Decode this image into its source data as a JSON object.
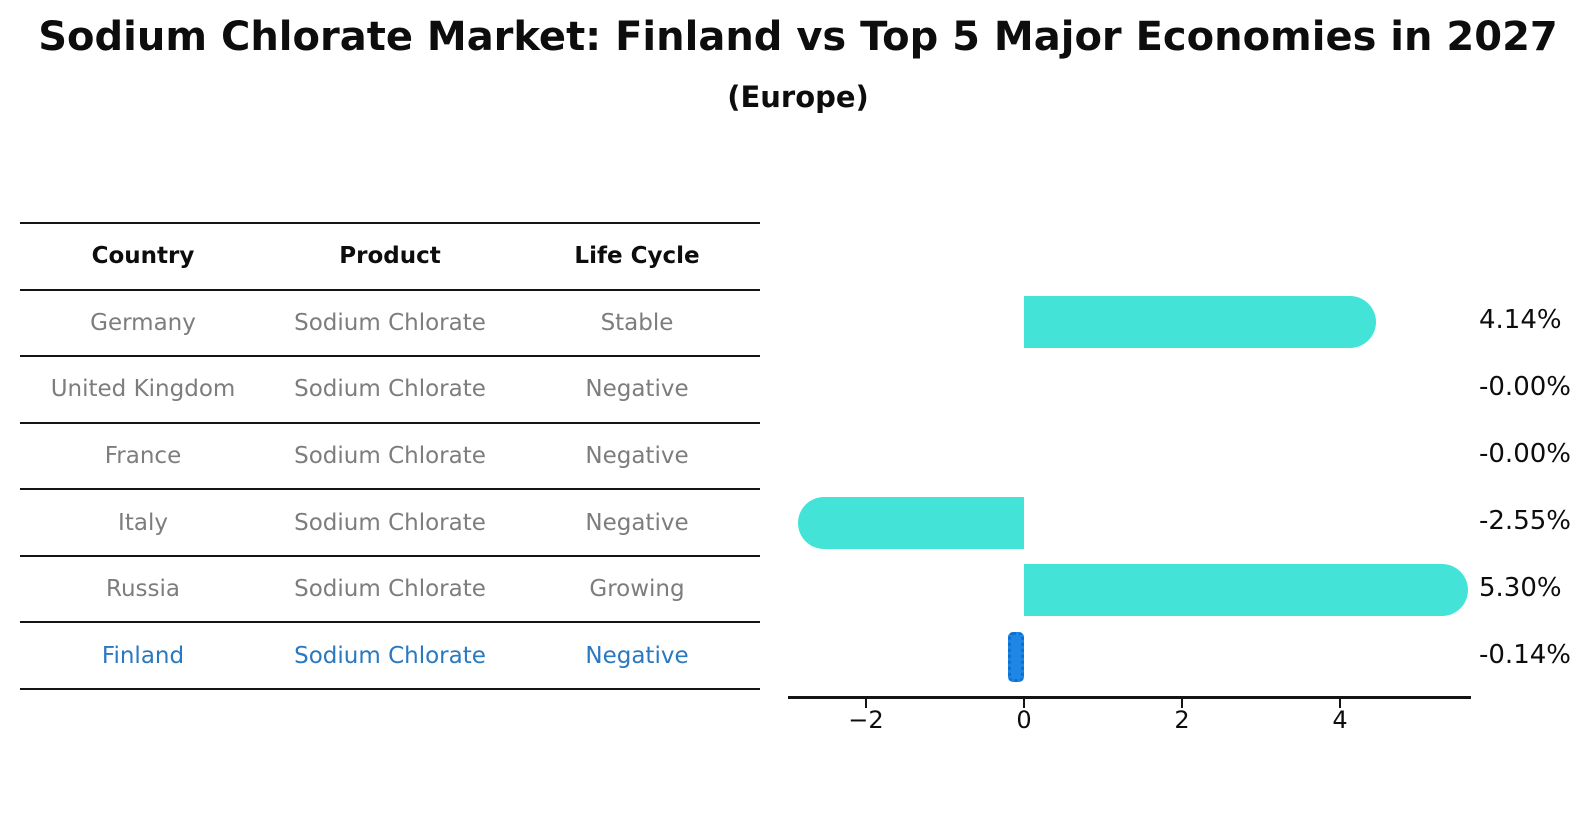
{
  "title": "Sodium Chlorate Market: Finland vs Top 5 Major Economies in 2027",
  "subtitle": "(Europe)",
  "table": {
    "headers": [
      "Country",
      "Product",
      "Life Cycle"
    ],
    "rows": [
      {
        "country": "Germany",
        "product": "Sodium Chlorate",
        "life_cycle": "Stable",
        "highlight": false
      },
      {
        "country": "United Kingdom",
        "product": "Sodium Chlorate",
        "life_cycle": "Negative",
        "highlight": false
      },
      {
        "country": "France",
        "product": "Sodium Chlorate",
        "life_cycle": "Negative",
        "highlight": false
      },
      {
        "country": "Italy",
        "product": "Sodium Chlorate",
        "life_cycle": "Negative",
        "highlight": false
      },
      {
        "country": "Russia",
        "product": "Sodium Chlorate",
        "life_cycle": "Growing",
        "highlight": false
      },
      {
        "country": "Finland",
        "product": "Sodium Chlorate",
        "life_cycle": "Negative",
        "highlight": true
      }
    ]
  },
  "chart_data": {
    "type": "bar",
    "orientation": "horizontal",
    "title": "Sodium Chlorate Market: Finland vs Top 5 Major Economies in 2027 (Europe)",
    "categories": [
      "Germany",
      "United Kingdom",
      "France",
      "Italy",
      "Russia",
      "Finland"
    ],
    "values": [
      4.14,
      -0.0,
      -0.0,
      -2.55,
      5.3,
      -0.14
    ],
    "value_labels": [
      "4.14%",
      "-0.00%",
      "-0.00%",
      "-2.55%",
      "5.30%",
      "-0.14%"
    ],
    "x_tick_labels": [
      "−2",
      "0",
      "2",
      "4"
    ],
    "x_tick_values": [
      -2,
      0,
      2,
      4
    ],
    "xlim": [
      -3.0,
      5.72
    ],
    "grid": false,
    "legend": "none",
    "xlabel": "",
    "ylabel": "",
    "bar_color": "#43e3d8",
    "highlight_bar_color": "#1e87e5"
  },
  "colors": {
    "title_text": "#0d0d0d",
    "table_text_muted": "#7d7d7d",
    "highlight_text": "#2878c2",
    "rule_line": "#141414"
  }
}
